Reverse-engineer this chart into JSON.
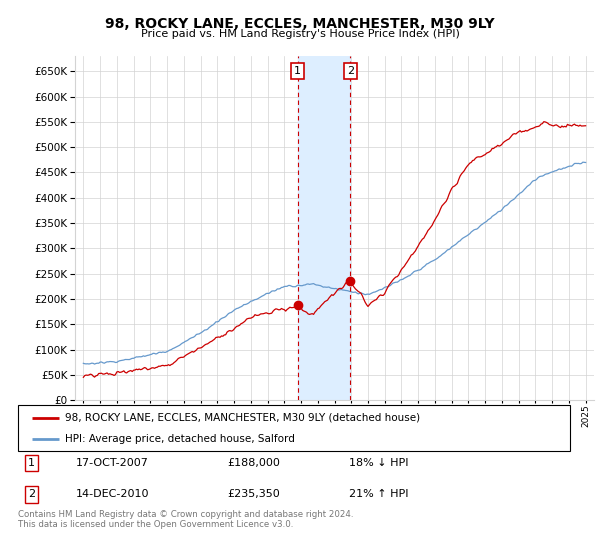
{
  "title": "98, ROCKY LANE, ECCLES, MANCHESTER, M30 9LY",
  "subtitle": "Price paid vs. HM Land Registry's House Price Index (HPI)",
  "legend_line1": "98, ROCKY LANE, ECCLES, MANCHESTER, M30 9LY (detached house)",
  "legend_line2": "HPI: Average price, detached house, Salford",
  "table_row1": [
    "1",
    "17-OCT-2007",
    "£188,000",
    "18% ↓ HPI"
  ],
  "table_row2": [
    "2",
    "14-DEC-2010",
    "£235,350",
    "21% ↑ HPI"
  ],
  "footnote": "Contains HM Land Registry data © Crown copyright and database right 2024.\nThis data is licensed under the Open Government Licence v3.0.",
  "sale1_date": 2007.79,
  "sale2_date": 2010.95,
  "sale1_price": 188000,
  "sale2_price": 235350,
  "hpi_color": "#6699cc",
  "price_color": "#cc0000",
  "highlight_color": "#ddeeff",
  "ylim": [
    0,
    680000
  ],
  "yticks": [
    0,
    50000,
    100000,
    150000,
    200000,
    250000,
    300000,
    350000,
    400000,
    450000,
    500000,
    550000,
    600000,
    650000
  ],
  "xlim_start": 1994.5,
  "xlim_end": 2025.5
}
